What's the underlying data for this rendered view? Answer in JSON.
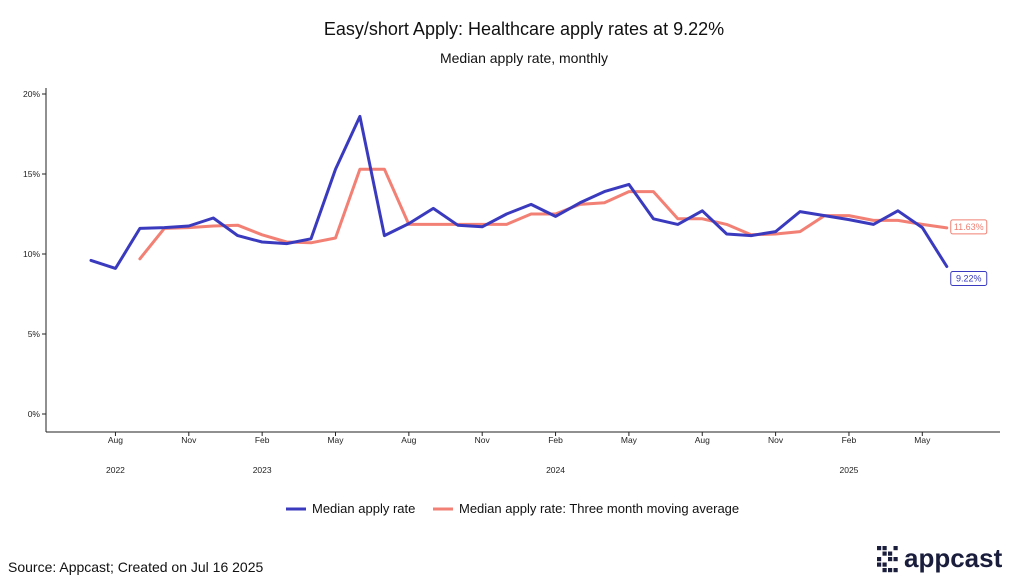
{
  "chart_data": {
    "type": "line",
    "title": "Easy/short Apply: Healthcare apply rates at 9.22%",
    "subtitle": "Median apply rate, monthly",
    "xlabel": "",
    "ylabel": "",
    "ylim": [
      0,
      20
    ],
    "y_ticks": [
      {
        "value": 0,
        "label": "0%"
      },
      {
        "value": 5,
        "label": "5%"
      },
      {
        "value": 10,
        "label": "10%"
      },
      {
        "value": 15,
        "label": "15%"
      },
      {
        "value": 20,
        "label": "20%"
      }
    ],
    "x_months": [
      "2022-07",
      "2022-08",
      "2022-09",
      "2022-10",
      "2022-11",
      "2022-12",
      "2023-01",
      "2023-02",
      "2023-03",
      "2023-04",
      "2023-05",
      "2023-06",
      "2023-07",
      "2023-08",
      "2023-09",
      "2023-10",
      "2023-11",
      "2023-12",
      "2024-01",
      "2024-02",
      "2024-03",
      "2024-04",
      "2024-05",
      "2024-06",
      "2024-07",
      "2024-08",
      "2024-09",
      "2024-10",
      "2024-11",
      "2024-12",
      "2025-01",
      "2025-02",
      "2025-03",
      "2025-04",
      "2025-05",
      "2025-06"
    ],
    "x_ticks": [
      {
        "month": "2022-08",
        "label": "Aug"
      },
      {
        "month": "2022-11",
        "label": "Nov"
      },
      {
        "month": "2023-02",
        "label": "Feb"
      },
      {
        "month": "2023-05",
        "label": "May"
      },
      {
        "month": "2023-08",
        "label": "Aug"
      },
      {
        "month": "2023-11",
        "label": "Nov"
      },
      {
        "month": "2024-02",
        "label": "Feb"
      },
      {
        "month": "2024-05",
        "label": "May"
      },
      {
        "month": "2024-08",
        "label": "Aug"
      },
      {
        "month": "2024-11",
        "label": "Nov"
      },
      {
        "month": "2025-02",
        "label": "Feb"
      },
      {
        "month": "2025-05",
        "label": "May"
      }
    ],
    "year_labels": [
      {
        "month": "2022-08",
        "label": "2022"
      },
      {
        "month": "2023-02",
        "label": "2023"
      },
      {
        "month": "2024-02",
        "label": "2024"
      },
      {
        "month": "2025-02",
        "label": "2025"
      }
    ],
    "series": [
      {
        "name": "Median apply rate",
        "color": "#3a3abf",
        "values": [
          9.6,
          9.1,
          11.6,
          11.65,
          11.75,
          12.25,
          11.15,
          10.75,
          10.65,
          10.95,
          15.3,
          18.6,
          11.15,
          11.9,
          12.85,
          11.8,
          11.7,
          12.5,
          13.1,
          12.35,
          13.2,
          13.9,
          14.35,
          12.2,
          11.85,
          12.7,
          11.25,
          11.15,
          11.4,
          12.65,
          12.4,
          12.15,
          11.85,
          12.7,
          11.65,
          9.22
        ]
      },
      {
        "name": "Median apply rate: Three month moving average",
        "color": "#f28074",
        "values": [
          null,
          null,
          9.7,
          11.6,
          11.65,
          11.75,
          11.8,
          11.2,
          10.75,
          10.7,
          11.0,
          15.3,
          15.3,
          11.85,
          11.85,
          11.85,
          11.85,
          11.85,
          12.5,
          12.5,
          13.1,
          13.2,
          13.9,
          13.9,
          12.2,
          12.2,
          11.85,
          11.2,
          11.25,
          11.4,
          12.4,
          12.4,
          12.1,
          12.1,
          11.85,
          11.63
        ]
      }
    ],
    "end_labels": [
      {
        "series": 0,
        "label": "9.22%"
      },
      {
        "series": 1,
        "label": "11.63%"
      }
    ],
    "legend_position": "bottom",
    "grid": false
  },
  "footer": {
    "source": "Source: Appcast; Created on Jul 16 2025",
    "brand": "appcast",
    "brand_color": "#1a1e3c"
  }
}
